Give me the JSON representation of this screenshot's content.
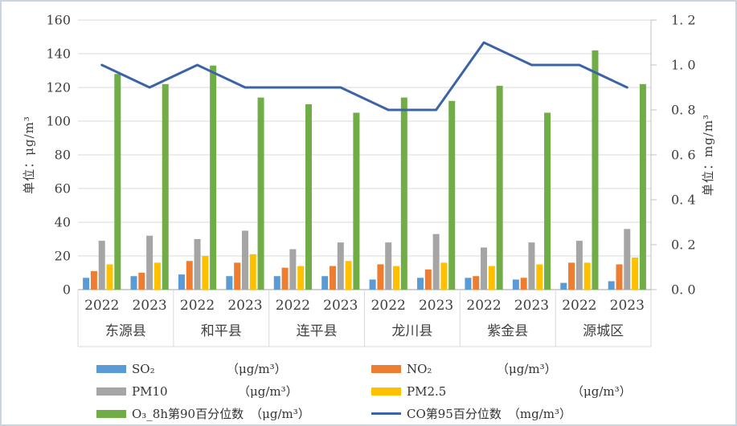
{
  "chart_data": {
    "type": "bar",
    "title": "",
    "groups": [
      "东源县",
      "和平县",
      "连平县",
      "龙川县",
      "紫金县",
      "源城区"
    ],
    "years": [
      "2022",
      "2023"
    ],
    "left_axis": {
      "title": "单位：μg/m³",
      "min": 0,
      "max": 160,
      "step": 20
    },
    "right_axis": {
      "title": "单位：mg/m³",
      "min": 0,
      "max": 1.2,
      "step": 0.2
    },
    "grid": true,
    "legend_position": "bottom",
    "series": [
      {
        "id": "so2",
        "name": "SO₂",
        "unit": "（μg/m³）",
        "type": "bar",
        "axis": "left",
        "color": "#5B9BD5",
        "values": [
          7,
          8,
          9,
          8,
          8,
          8,
          6,
          7,
          7,
          6,
          4,
          5
        ]
      },
      {
        "id": "no2",
        "name": "NO₂",
        "unit": "（μg/m³）",
        "type": "bar",
        "axis": "left",
        "color": "#ED7D31",
        "values": [
          11,
          10,
          17,
          16,
          13,
          14,
          15,
          12,
          8,
          7,
          16,
          15
        ]
      },
      {
        "id": "pm10",
        "name": "PM10",
        "unit": "（μg/m³）",
        "type": "bar",
        "axis": "left",
        "color": "#A5A5A5",
        "values": [
          29,
          32,
          30,
          35,
          24,
          28,
          28,
          33,
          25,
          28,
          29,
          36
        ]
      },
      {
        "id": "pm25",
        "name": "PM2.5",
        "unit": "（μg/m³）",
        "type": "bar",
        "axis": "left",
        "color": "#FFC000",
        "values": [
          15,
          16,
          20,
          21,
          14,
          17,
          14,
          16,
          14,
          15,
          16,
          19
        ]
      },
      {
        "id": "o3",
        "name": "O₃_8h第90百分位数",
        "unit": "（μg/m³）",
        "type": "bar",
        "axis": "left",
        "color": "#70AD47",
        "values": [
          128,
          122,
          133,
          114,
          110,
          105,
          114,
          112,
          121,
          105,
          142,
          122
        ]
      },
      {
        "id": "co",
        "name": "CO第95百分位数",
        "unit": "（mg/m³）",
        "type": "line",
        "axis": "right",
        "color": "#3B63A5",
        "values": [
          1.0,
          0.9,
          1.0,
          0.9,
          0.9,
          0.9,
          0.8,
          0.8,
          1.1,
          1.0,
          1.0,
          0.9
        ]
      }
    ]
  }
}
